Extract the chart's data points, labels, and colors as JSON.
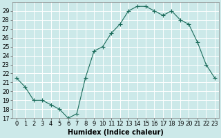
{
  "x": [
    0,
    1,
    2,
    3,
    4,
    5,
    6,
    7,
    8,
    9,
    10,
    11,
    12,
    13,
    14,
    15,
    16,
    17,
    18,
    19,
    20,
    21,
    22,
    23
  ],
  "y": [
    21.5,
    20.5,
    19.0,
    19.0,
    18.5,
    18.0,
    17.0,
    17.5,
    21.5,
    24.5,
    25.0,
    26.5,
    27.5,
    29.0,
    29.5,
    29.5,
    29.0,
    28.5,
    29.0,
    28.0,
    27.5,
    25.5,
    23.0,
    21.5
  ],
  "line_color": "#1a6b5a",
  "marker": "+",
  "marker_size": 4,
  "bg_color": "#cce9e9",
  "grid_color": "#b0d8d8",
  "xlabel": "Humidex (Indice chaleur)",
  "ylim": [
    17,
    30
  ],
  "xlim": [
    -0.5,
    23.5
  ],
  "yticks": [
    17,
    18,
    19,
    20,
    21,
    22,
    23,
    24,
    25,
    26,
    27,
    28,
    29
  ],
  "xticks": [
    0,
    1,
    2,
    3,
    4,
    5,
    6,
    7,
    8,
    9,
    10,
    11,
    12,
    13,
    14,
    15,
    16,
    17,
    18,
    19,
    20,
    21,
    22,
    23
  ],
  "xlabel_fontsize": 7,
  "tick_fontsize": 6
}
